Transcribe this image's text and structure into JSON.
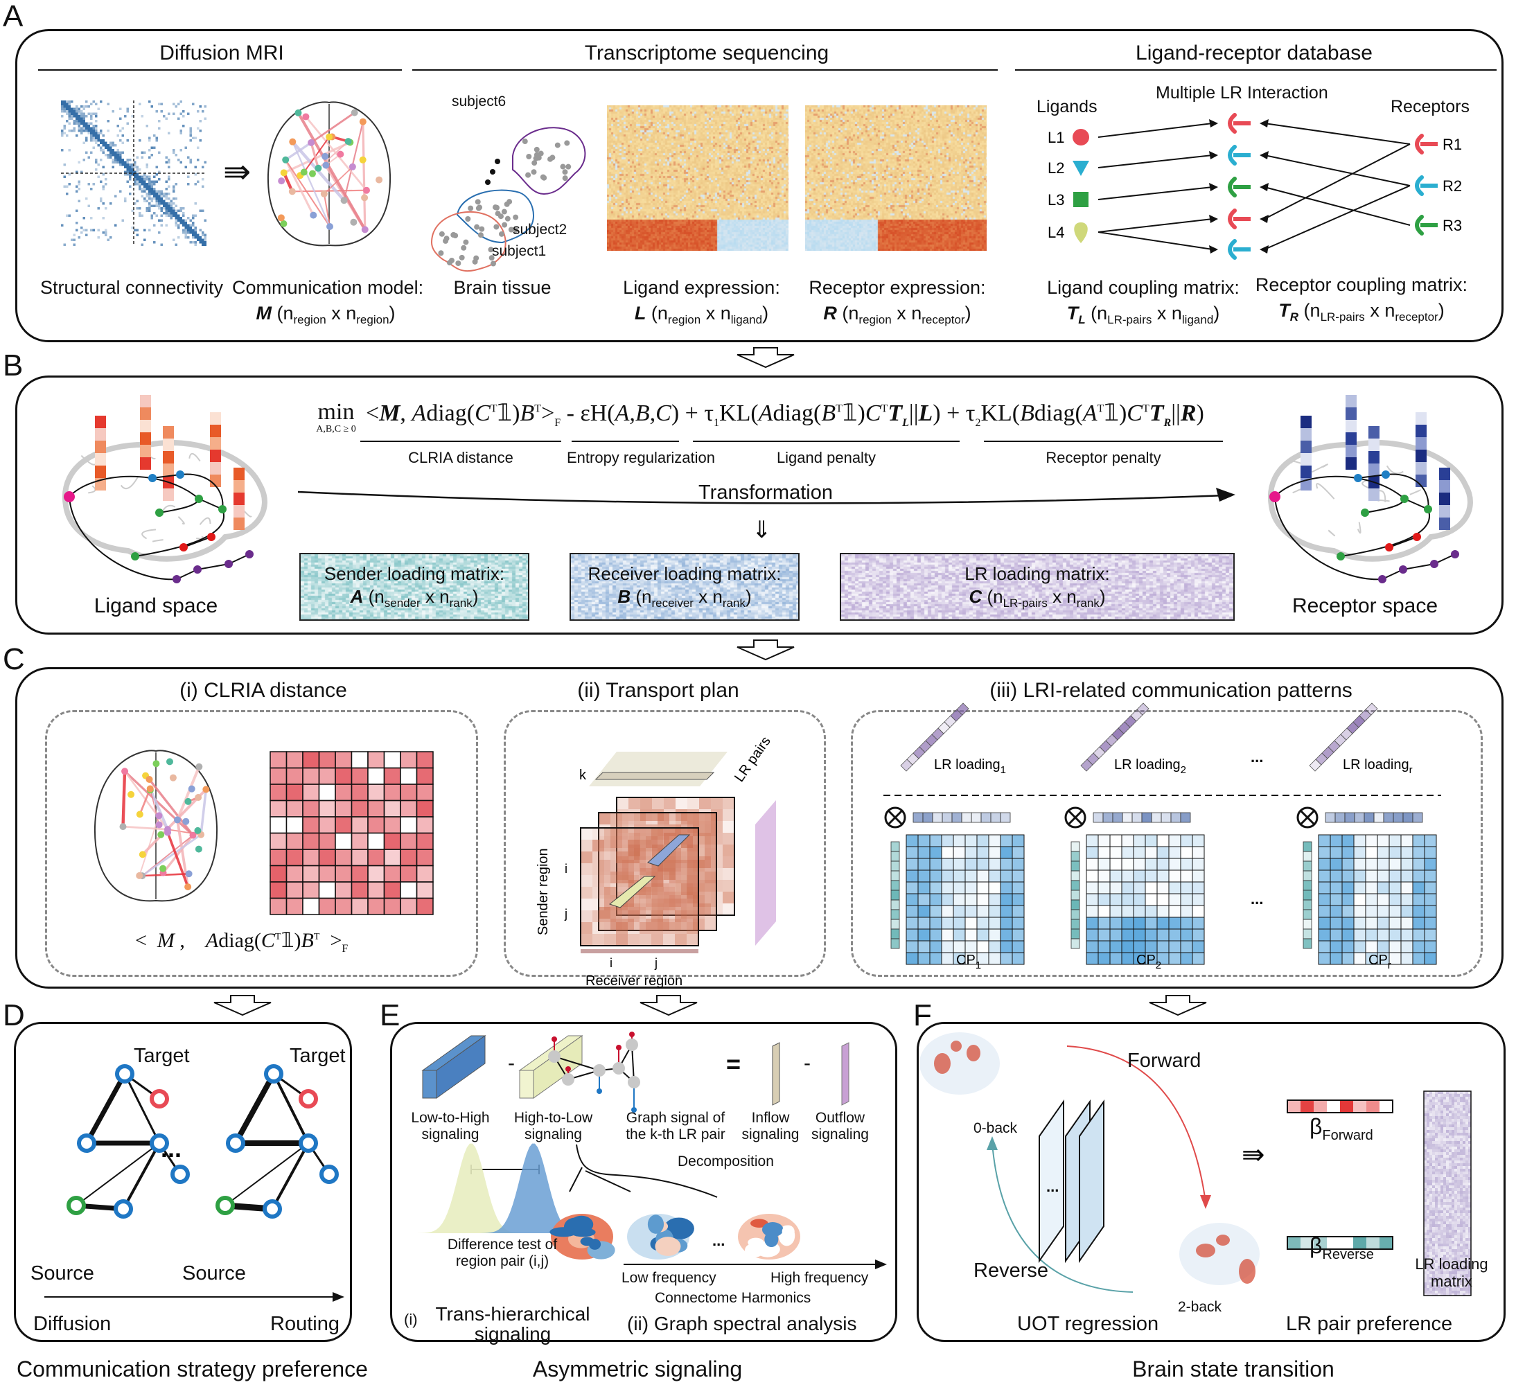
{
  "panels": {
    "A": {
      "label": "A",
      "sections": [
        {
          "title": "Diffusion MRI"
        },
        {
          "title": "Transcriptome sequencing"
        },
        {
          "title": "Ligand-receptor database"
        }
      ],
      "captions": {
        "structural": "Structural connectivity",
        "comm_model": "Communication model:",
        "comm_sym": "M",
        "comm_dims": {
          "a": "region",
          "b": "region"
        },
        "brain_tissue": "Brain tissue",
        "ligand_expr": "Ligand expression:",
        "ligand_sym": "L",
        "ligand_dims": {
          "a": "region",
          "b": "ligand"
        },
        "receptor_expr": "Receptor expression:",
        "receptor_sym": "R",
        "receptor_dims": {
          "a": "region",
          "b": "receptor"
        },
        "lig_coupling": "Ligand coupling matrix:",
        "lig_coupling_sym": "T",
        "lig_coupling_symsub": "L",
        "lig_coupling_dims": {
          "a": "LR-pairs",
          "b": "ligand"
        },
        "rec_coupling": "Receptor coupling matrix:",
        "rec_coupling_sym": "T",
        "rec_coupling_symsub": "R",
        "rec_coupling_dims": {
          "a": "LR-pairs",
          "b": "receptor"
        }
      },
      "subjects": [
        "subject6",
        "subject2",
        "subject1"
      ],
      "lr_db": {
        "ligands_header": "Ligands",
        "interaction_header": "Multiple LR Interaction",
        "receptors_header": "Receptors",
        "ligands": [
          {
            "name": "L1",
            "shape": "circle",
            "color": "#e84a55"
          },
          {
            "name": "L2",
            "shape": "triangle",
            "color": "#2aaed0"
          },
          {
            "name": "L3",
            "shape": "square",
            "color": "#2ea043"
          },
          {
            "name": "L4",
            "shape": "drop",
            "color": "#cfd87a"
          }
        ],
        "receptors": [
          {
            "name": "R1",
            "color": "#e84a55"
          },
          {
            "name": "R2",
            "color": "#2aaed0"
          },
          {
            "name": "R3",
            "color": "#2ea043"
          }
        ]
      },
      "implies_symbol": "⇛"
    },
    "B": {
      "label": "B",
      "objective": {
        "min": "min",
        "min_sub": "A,B,C ≥ 0",
        "term1": "<M, Adiag(CᵀᵀȈ)Bᵀ>",
        "terms_labels": [
          "CLRIA distance",
          "Entropy regularization",
          "Ligand penalty",
          "Receptor penalty"
        ]
      },
      "transformation": "Transformation",
      "ligand_space": "Ligand space",
      "receptor_space": "Receptor space",
      "matrices": [
        {
          "title": "Sender loading matrix:",
          "sym": "A",
          "a": "sender",
          "b": "rank",
          "color": "#7cc1c4"
        },
        {
          "title": "Receiver loading matrix:",
          "sym": "B",
          "a": "receiver",
          "b": "rank",
          "color": "#8fb1d9"
        },
        {
          "title": "LR loading matrix:",
          "sym": "C",
          "a": "LR-pairs",
          "b": "rank",
          "color": "#b8a6d4"
        }
      ]
    },
    "C": {
      "label": "C",
      "sub1": {
        "title": "(i) CLRIA distance"
      },
      "sub2": {
        "title": "(ii) Transport plan",
        "k": "k",
        "lr_pairs": "LR pairs",
        "sender": "Sender region",
        "receiver": "Receiver region",
        "i": "i",
        "j": "j"
      },
      "sub3": {
        "title": "(iii) LRI-related communication patterns",
        "loadings": [
          {
            "label": "LR loading",
            "sub": "1"
          },
          {
            "label": "LR loading",
            "sub": "2"
          },
          {
            "label": "LR loading",
            "sub": "r"
          }
        ],
        "patterns": [
          {
            "label": "CP",
            "sub": "1"
          },
          {
            "label": "CP",
            "sub": "2"
          },
          {
            "label": "CP",
            "sub": "r"
          }
        ],
        "ellipsis": "..."
      }
    },
    "D": {
      "label": "D",
      "target": "Target",
      "source": "Source",
      "ellipsis": "...",
      "diffusion": "Diffusion",
      "routing": "Routing",
      "caption": "Communication strategy preference"
    },
    "E": {
      "label": "E",
      "low_to_high": [
        "Low-to-High",
        "signaling"
      ],
      "high_to_low": [
        "High-to-Low",
        "signaling"
      ],
      "graph_signal": [
        "Graph signal of",
        "the k-th LR pair"
      ],
      "inflow": [
        "Inflow",
        "signaling"
      ],
      "outflow": [
        "Outflow",
        "signaling"
      ],
      "minus": "-",
      "equals": "=",
      "decomposition": "Decomposition",
      "difference_test": [
        "Difference test of",
        "region pair (i,j)"
      ],
      "low_freq": "Low frequency",
      "high_freq": "High frequency",
      "harmonics": "Connectome Harmonics",
      "sub1_prefix": "(i)",
      "sub1": [
        "Trans-hierarchical",
        "signaling"
      ],
      "sub2": "(ii) Graph spectral analysis",
      "caption": "Asymmetric signaling"
    },
    "F": {
      "label": "F",
      "forward": "Forward",
      "reverse": "Reverse",
      "zero_back": "0-back",
      "two_back": "2-back",
      "ellipsis": "...",
      "beta_forward": "β",
      "beta_forward_sub": "Forward",
      "beta_reverse": "β",
      "beta_reverse_sub": "Reverse",
      "lr_loading_matrix": [
        "LR loading",
        "matrix"
      ],
      "uot": "UOT regression",
      "lr_pref": "LR pair preference",
      "caption": "Brain state transition",
      "beta_forward_values": [
        0.35,
        0.9,
        0.4,
        0.0,
        0.95,
        0.3,
        0.55,
        0.0
      ],
      "beta_reverse_values": [
        0.6,
        0.2,
        0.4,
        0.0,
        0.0,
        0.75,
        0.3,
        0.7
      ]
    }
  }
}
